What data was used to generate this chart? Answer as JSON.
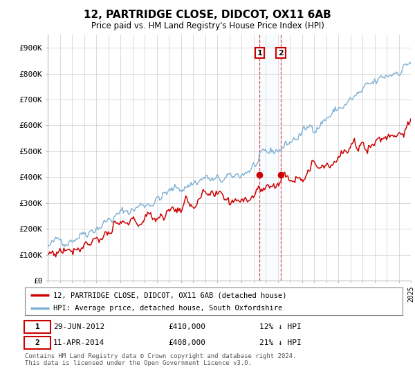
{
  "title": "12, PARTRIDGE CLOSE, DIDCOT, OX11 6AB",
  "subtitle": "Price paid vs. HM Land Registry's House Price Index (HPI)",
  "ylabel_ticks": [
    "£0",
    "£100K",
    "£200K",
    "£300K",
    "£400K",
    "£500K",
    "£600K",
    "£700K",
    "£800K",
    "£900K"
  ],
  "ytick_values": [
    0,
    100000,
    200000,
    300000,
    400000,
    500000,
    600000,
    700000,
    800000,
    900000
  ],
  "ylim": [
    0,
    950000
  ],
  "hpi_color": "#7bafd4",
  "price_color": "#cc0000",
  "t1": 17.5,
  "v1": 410000,
  "t2": 19.25,
  "v2": 408000,
  "legend_label_red": "12, PARTRIDGE CLOSE, DIDCOT, OX11 6AB (detached house)",
  "legend_label_blue": "HPI: Average price, detached house, South Oxfordshire",
  "footer": "Contains HM Land Registry data © Crown copyright and database right 2024.\nThis data is licensed under the Open Government Licence v3.0.",
  "background_color": "#ffffff",
  "grid_color": "#cccccc",
  "shade_color": "#ddeeff"
}
